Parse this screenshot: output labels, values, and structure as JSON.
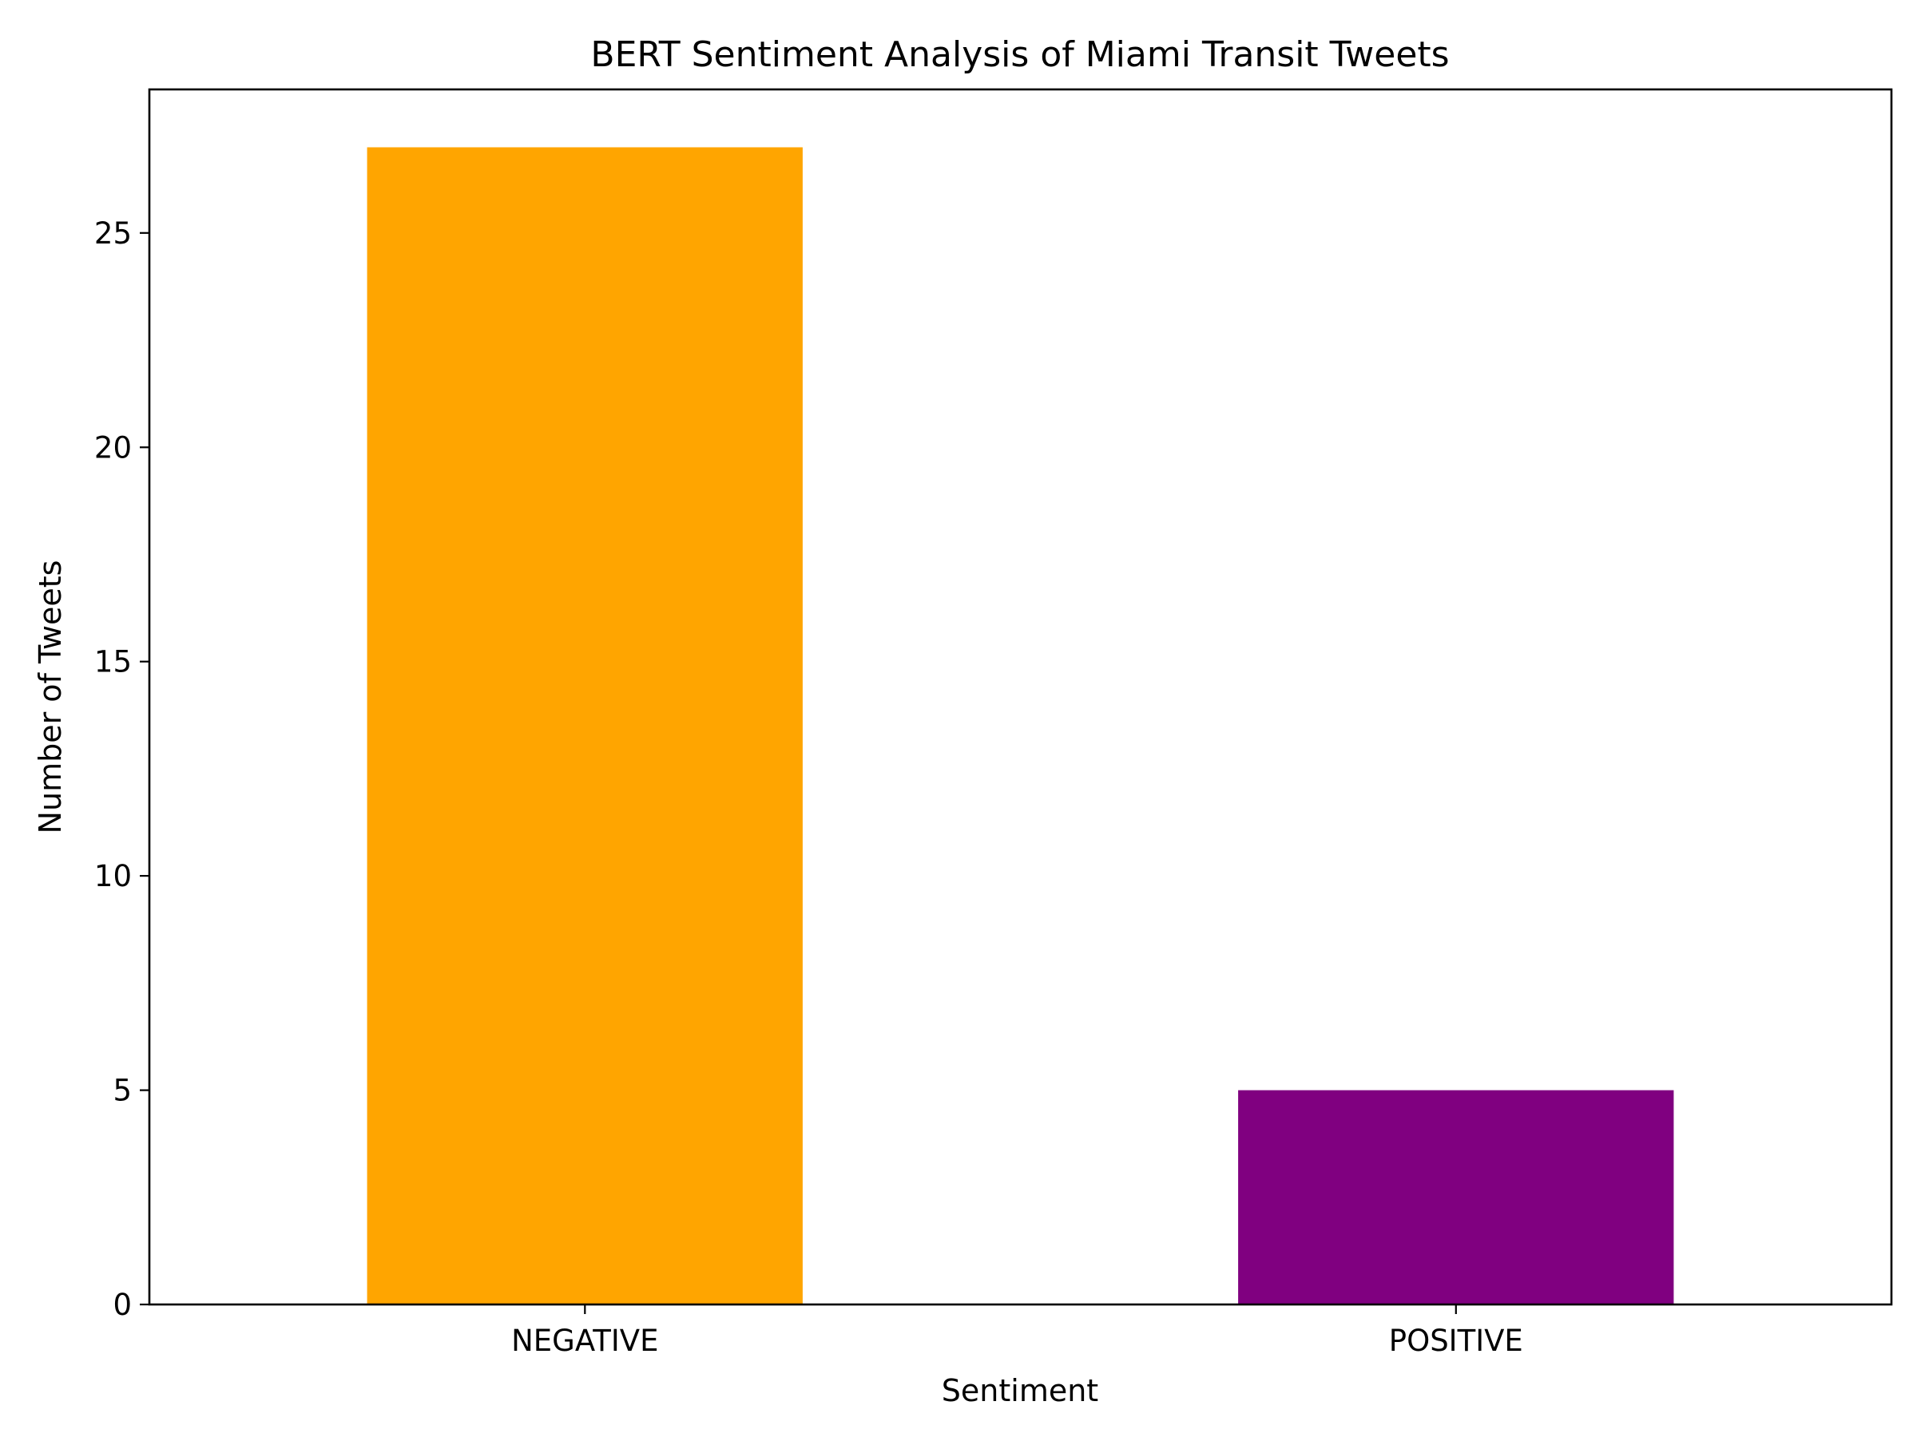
{
  "chart_data": {
    "type": "bar",
    "title": "BERT Sentiment Analysis of Miami Transit Tweets",
    "xlabel": "Sentiment",
    "ylabel": "Number of Tweets",
    "categories": [
      "NEGATIVE",
      "POSITIVE"
    ],
    "values": [
      27,
      5
    ],
    "colors": [
      "#FFA500",
      "#800080"
    ],
    "ylim": [
      0,
      28.35
    ],
    "yticks": [
      0,
      5,
      10,
      15,
      20,
      25
    ],
    "grid": false,
    "legend": "none"
  }
}
